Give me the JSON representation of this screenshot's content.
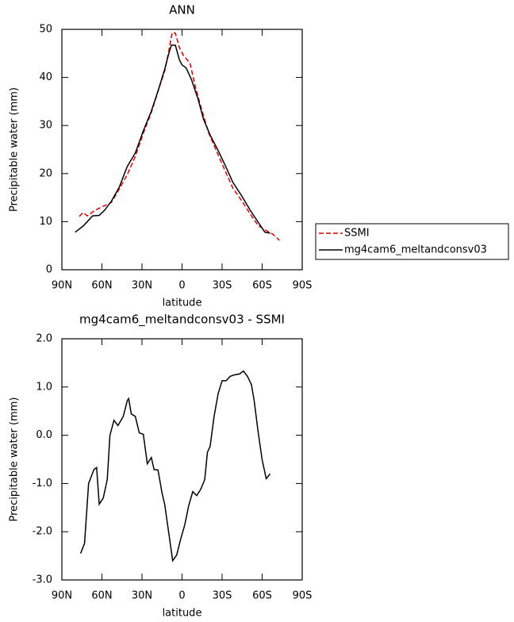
{
  "chart_data": [
    {
      "type": "line",
      "title": "ANN",
      "xlabel": "latitude",
      "ylabel": "Precipitable water (mm)",
      "xlim": [
        90,
        -90
      ],
      "xticks": [
        {
          "value": 90,
          "label": "90N"
        },
        {
          "value": 60,
          "label": "60N"
        },
        {
          "value": 30,
          "label": "30N"
        },
        0,
        {
          "value": -30,
          "label": "30S"
        },
        {
          "value": -60,
          "label": "60S"
        },
        {
          "value": -90,
          "label": "90S"
        }
      ],
      "ylim": [
        0,
        50
      ],
      "yticks": [
        0,
        10,
        20,
        30,
        40,
        50
      ],
      "legend": "outside-right",
      "series": [
        {
          "name": "SSMI",
          "color": "#e00000",
          "linestyle": "dashed",
          "x": [
            77,
            74,
            71,
            65,
            59,
            53,
            47,
            41,
            35,
            29,
            23,
            17.5,
            13,
            10,
            7.5,
            5,
            2,
            -1,
            -6,
            -10,
            -15,
            -20,
            -27,
            -33,
            -38,
            -45,
            -51,
            -57,
            -62,
            -68,
            -73
          ],
          "values": [
            11.1,
            11.9,
            11.2,
            12.4,
            13.2,
            14,
            16.8,
            19.8,
            23.6,
            28.4,
            32.7,
            37.5,
            41.3,
            45.4,
            49.3,
            49.2,
            46.2,
            44.6,
            42.9,
            38,
            33,
            28.4,
            23.9,
            20.1,
            17,
            14.2,
            11.6,
            9.2,
            8.3,
            7.4,
            6.1
          ]
        },
        {
          "name": "mg4cam6_meltandconsv03",
          "color": "#000000",
          "linestyle": "solid",
          "x": [
            80,
            74,
            67,
            62,
            58,
            53,
            47,
            41,
            35,
            29,
            23,
            17.5,
            13,
            10,
            8,
            5,
            2,
            0,
            -3,
            -7,
            -12,
            -16,
            -21,
            -27,
            -33,
            -38,
            -45,
            -51,
            -57,
            -62,
            -66
          ],
          "values": [
            7.8,
            9.1,
            11.2,
            11.3,
            12.4,
            14.2,
            17.2,
            21.5,
            24.3,
            28.9,
            33,
            37.6,
            41.7,
            44.9,
            46.7,
            46.7,
            43.7,
            42.6,
            42,
            39.6,
            35.5,
            31.4,
            28,
            24.8,
            21.3,
            18.2,
            15.2,
            12.4,
            9.9,
            7.8,
            7.6
          ]
        }
      ]
    },
    {
      "type": "line",
      "title": "mg4cam6_meltandconsv03 - SSMI",
      "xlabel": "latitude",
      "ylabel": "Precipitable water (mm)",
      "xlim": [
        90,
        -90
      ],
      "xticks": [
        {
          "value": 90,
          "label": "90N"
        },
        {
          "value": 60,
          "label": "60N"
        },
        {
          "value": 30,
          "label": "30N"
        },
        0,
        {
          "value": -30,
          "label": "30S"
        },
        {
          "value": -60,
          "label": "60S"
        },
        {
          "value": -90,
          "label": "90S"
        }
      ],
      "ylim": [
        -3,
        2
      ],
      "yticks": [
        {
          "value": -3,
          "label": "-3.0"
        },
        {
          "value": -2,
          "label": "-2.0"
        },
        {
          "value": -1,
          "label": "-1.0"
        },
        {
          "value": 0,
          "label": "0.0"
        },
        {
          "value": 1,
          "label": "1.0"
        },
        {
          "value": 2,
          "label": "2.0"
        }
      ],
      "color": "#000000",
      "x": [
        76,
        73,
        70,
        66,
        64,
        62,
        59,
        56,
        54,
        51,
        48,
        44,
        41,
        40,
        38,
        35,
        32,
        29,
        26,
        23,
        21,
        18,
        15,
        13,
        10,
        7,
        4,
        1,
        -2,
        -5,
        -8,
        -11,
        -14,
        -17,
        -19,
        -21,
        -24,
        -27,
        -30,
        -33,
        -36,
        -39,
        -43,
        -46,
        -49,
        -52,
        -54,
        -57,
        -60,
        -63,
        -66
      ],
      "values": [
        -2.45,
        -2.24,
        -1.0,
        -0.71,
        -0.67,
        -1.43,
        -1.3,
        -0.92,
        0.0,
        0.31,
        0.2,
        0.39,
        0.72,
        0.76,
        0.44,
        0.39,
        0.05,
        0.02,
        -0.59,
        -0.46,
        -0.71,
        -0.72,
        -1.2,
        -1.43,
        -2.02,
        -2.6,
        -2.48,
        -2.15,
        -1.86,
        -1.46,
        -1.17,
        -1.25,
        -1.12,
        -0.92,
        -0.35,
        -0.23,
        0.39,
        0.86,
        1.13,
        1.13,
        1.22,
        1.25,
        1.27,
        1.33,
        1.22,
        1.05,
        0.72,
        0.07,
        -0.51,
        -0.9,
        -0.8
      ]
    }
  ]
}
